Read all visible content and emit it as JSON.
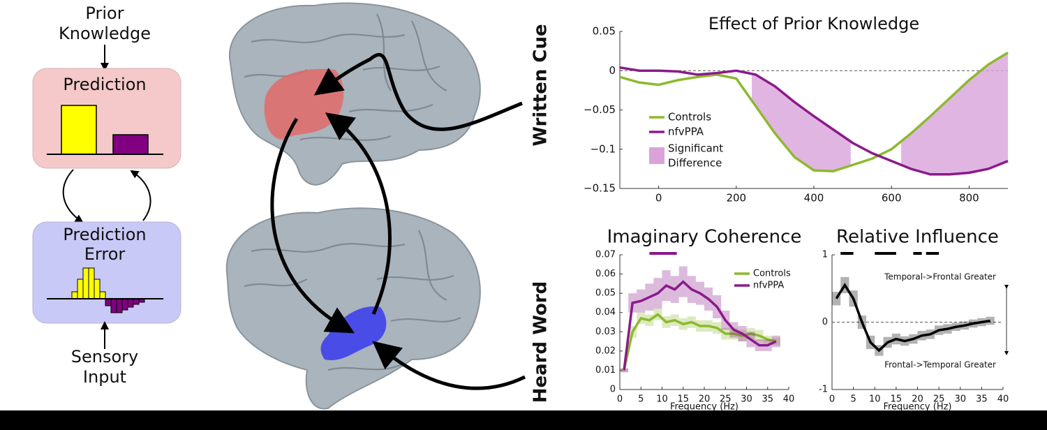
{
  "diagram": {
    "top_label": [
      "Prior",
      "Knowledge"
    ],
    "prediction": "Prediction",
    "error": [
      "Prediction",
      "Error"
    ],
    "bottom_label": [
      "Sensory",
      "Input"
    ],
    "cue_labels": [
      "Written Cue",
      "Heard Word"
    ]
  },
  "chart_data": [
    {
      "type": "line",
      "title": "Effect of Prior Knowledge",
      "x": [
        -100,
        -50,
        0,
        50,
        100,
        150,
        200,
        250,
        300,
        350,
        400,
        450,
        500,
        550,
        600,
        650,
        700,
        750,
        800,
        850,
        900
      ],
      "xlim": [
        -100,
        900
      ],
      "xticks": [
        0,
        200,
        400,
        600,
        800
      ],
      "ylim": [
        -0.15,
        0.05
      ],
      "yticks": [
        {
          "value": -0.15,
          "label": "−0.15"
        },
        {
          "value": -0.1,
          "label": "−0.1"
        },
        {
          "value": -0.05,
          "label": "−0.05"
        },
        0,
        0.05
      ],
      "reference_line": 0,
      "legend": "lower left",
      "series": [
        {
          "name": "Controls",
          "color": "#8db92e",
          "values": [
            -0.008,
            -0.015,
            -0.018,
            -0.012,
            -0.008,
            -0.005,
            -0.01,
            -0.045,
            -0.08,
            -0.11,
            -0.127,
            -0.128,
            -0.12,
            -0.112,
            -0.1,
            -0.08,
            -0.058,
            -0.035,
            -0.012,
            0.008,
            0.023
          ]
        },
        {
          "name": "nfvPPA",
          "color": "#8b1a8b",
          "values": [
            0.004,
            0,
            0,
            -0.001,
            -0.005,
            -0.003,
            0,
            -0.005,
            -0.02,
            -0.04,
            -0.058,
            -0.075,
            -0.092,
            -0.105,
            -0.115,
            -0.125,
            -0.132,
            -0.132,
            -0.13,
            -0.125,
            -0.115
          ]
        }
      ],
      "significance": {
        "name": [
          "Significant",
          "Difference"
        ],
        "color": "#d9a3d9",
        "regions": [
          [
            240,
            495
          ],
          [
            625,
            900
          ]
        ]
      }
    },
    {
      "type": "line",
      "title": "Imaginary Coherence",
      "xlabel": "Frequency (Hz)",
      "x": [
        1,
        3,
        5,
        7,
        9,
        11,
        13,
        15,
        17,
        19,
        21,
        23,
        25,
        27,
        29,
        31,
        33,
        35,
        37
      ],
      "xlim": [
        0,
        40
      ],
      "xticks": [
        0,
        5,
        10,
        15,
        20,
        25,
        30,
        35,
        40
      ],
      "ylim": [
        0,
        0.07
      ],
      "yticks": [
        0,
        0.01,
        0.02,
        0.03,
        0.04,
        0.05,
        0.06,
        0.07
      ],
      "legend": "upper right",
      "series": [
        {
          "name": "Controls",
          "color": "#8db92e",
          "values": [
            0.01,
            0.03,
            0.037,
            0.036,
            0.039,
            0.035,
            0.036,
            0.034,
            0.035,
            0.033,
            0.033,
            0.032,
            0.029,
            0.029,
            0.028,
            0.029,
            0.028,
            0.026,
            0.025
          ],
          "errors": [
            0.001,
            0.003,
            0.003,
            0.003,
            0.003,
            0.003,
            0.003,
            0.003,
            0.003,
            0.003,
            0.003,
            0.003,
            0.003,
            0.003,
            0.003,
            0.003,
            0.003,
            0.002,
            0.002
          ]
        },
        {
          "name": "nfvPPA",
          "color": "#8b1a8b",
          "values": [
            0.01,
            0.045,
            0.046,
            0.048,
            0.05,
            0.054,
            0.052,
            0.056,
            0.052,
            0.05,
            0.047,
            0.043,
            0.036,
            0.031,
            0.029,
            0.026,
            0.023,
            0.023,
            0.025
          ],
          "errors": [
            0.001,
            0.005,
            0.006,
            0.007,
            0.008,
            0.008,
            0.007,
            0.008,
            0.007,
            0.006,
            0.006,
            0.006,
            0.005,
            0.004,
            0.004,
            0.004,
            0.003,
            0.003,
            0.003
          ]
        }
      ],
      "sig_bars": {
        "color": "#8b1a8b",
        "ranges": [
          [
            7,
            13.5
          ]
        ]
      }
    },
    {
      "type": "line",
      "title": "Relative Influence",
      "xlabel": "Frequency (Hz)",
      "x": [
        1,
        3,
        5,
        7,
        9,
        11,
        13,
        15,
        17,
        19,
        21,
        23,
        25,
        27,
        29,
        31,
        33,
        35,
        37
      ],
      "xlim": [
        0,
        40
      ],
      "xticks": [
        0,
        5,
        10,
        15,
        20,
        25,
        30,
        35,
        40
      ],
      "ylim": [
        -1,
        1
      ],
      "yticks": [
        -1,
        0,
        1
      ],
      "reference_line": 0,
      "series": [
        {
          "color": "#000000",
          "values": [
            0.35,
            0.55,
            0.35,
            0,
            -0.3,
            -0.42,
            -0.3,
            -0.25,
            -0.28,
            -0.25,
            -0.2,
            -0.18,
            -0.12,
            -0.1,
            -0.07,
            -0.05,
            -0.02,
            0,
            0.02
          ],
          "errors": [
            0.1,
            0.12,
            0.12,
            0.1,
            0.1,
            0.08,
            0.08,
            0.08,
            0.07,
            0.07,
            0.07,
            0.07,
            0.07,
            0.07,
            0.06,
            0.06,
            0.06,
            0.06,
            0.06
          ]
        }
      ],
      "sig_bars": {
        "color": "#000000",
        "ranges": [
          [
            2,
            5
          ],
          [
            10,
            15
          ],
          [
            19,
            21
          ],
          [
            22,
            25
          ]
        ]
      },
      "annotations": [
        "Temporal->Frontal Greater",
        "Frontal->Temporal Greater"
      ]
    }
  ]
}
